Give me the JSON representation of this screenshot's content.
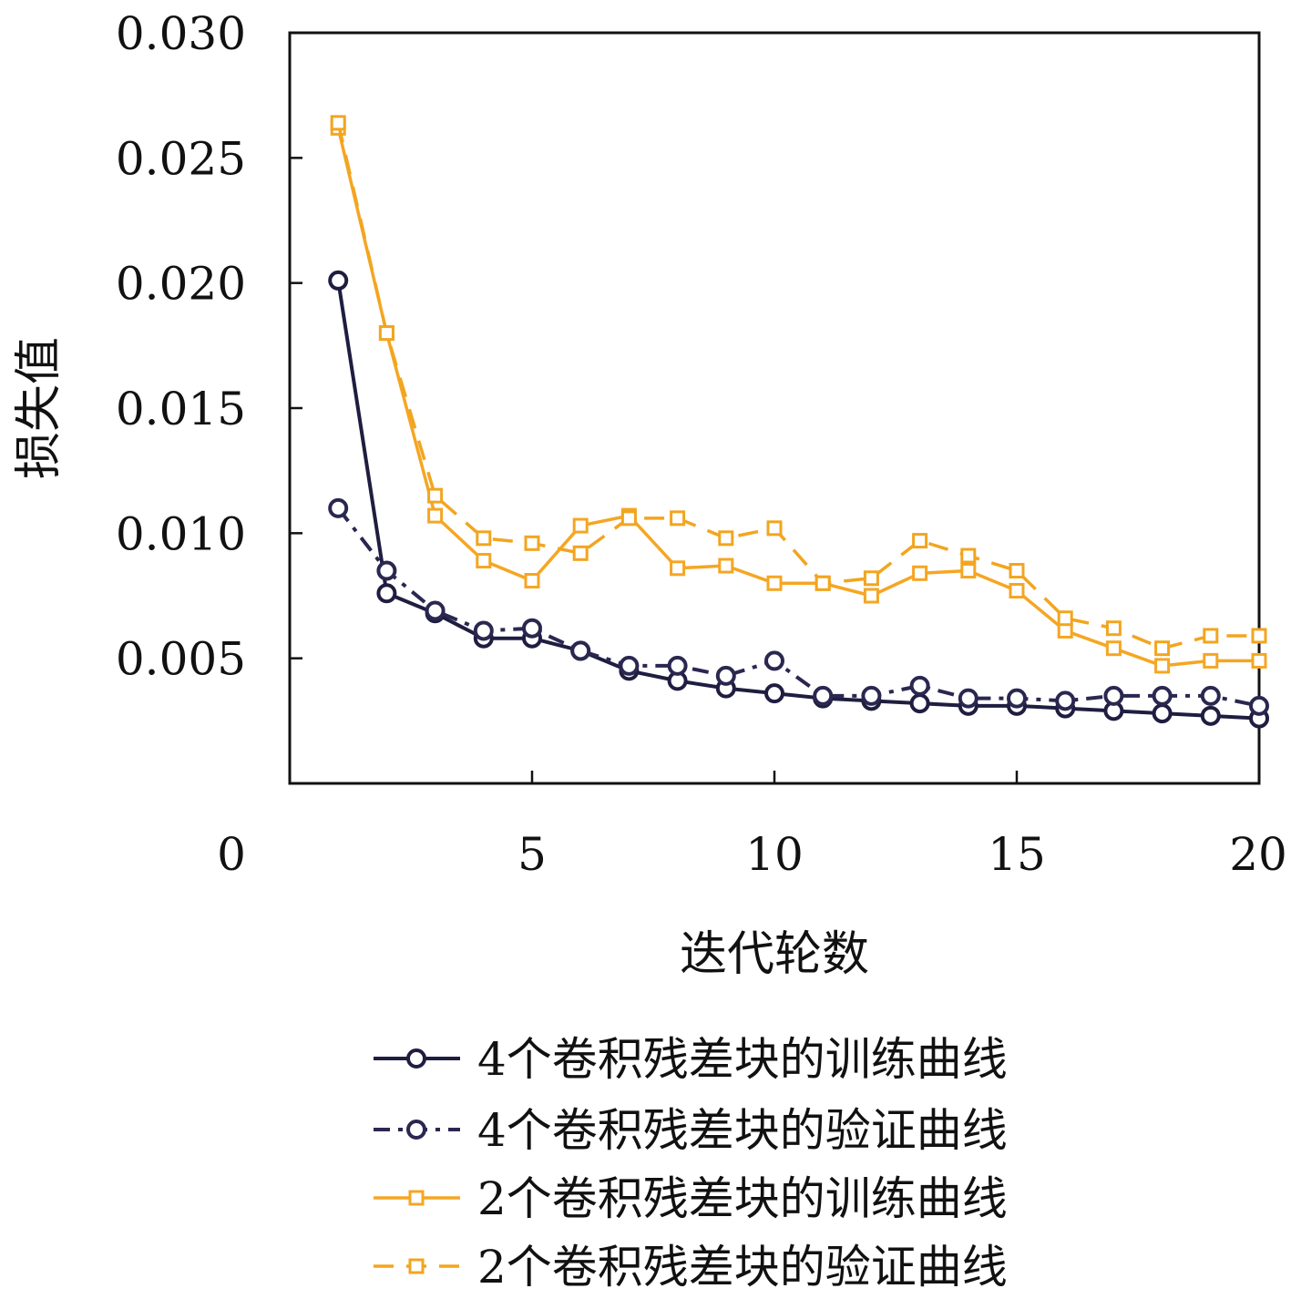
{
  "chart_data": {
    "type": "line",
    "xlabel": "迭代轮数",
    "ylabel": "损失值",
    "xlim": [
      0,
      20
    ],
    "ylim": [
      0,
      0.03
    ],
    "x_ticks": [
      "0",
      "5",
      "10",
      "15",
      "20"
    ],
    "y_ticks": [
      "0.005",
      "0.010",
      "0.015",
      "0.020",
      "0.025",
      "0.030"
    ],
    "grid": false,
    "legend_position": "bottom",
    "x": [
      1,
      2,
      3,
      4,
      5,
      6,
      7,
      8,
      9,
      10,
      11,
      12,
      13,
      14,
      15,
      16,
      17,
      18,
      19,
      20
    ],
    "series": [
      {
        "name": "4个卷积残差块的训练曲线",
        "color": "#1f1d40",
        "dash": "solid",
        "marker": "circle",
        "values": [
          0.0201,
          0.0076,
          0.0068,
          0.0058,
          0.0058,
          0.0053,
          0.0045,
          0.0041,
          0.0038,
          0.0036,
          0.0034,
          0.0033,
          0.0032,
          0.0031,
          0.0031,
          0.003,
          0.0029,
          0.0028,
          0.0027,
          0.0026
        ]
      },
      {
        "name": "4个卷积残差块的验证曲线",
        "color": "#2a2750",
        "dash": "dashdot",
        "marker": "circle",
        "values": [
          0.011,
          0.0085,
          0.0069,
          0.0061,
          0.0062,
          0.0053,
          0.0047,
          0.0047,
          0.0043,
          0.0049,
          0.0035,
          0.0035,
          0.0039,
          0.0034,
          0.0034,
          0.0033,
          0.0035,
          0.0035,
          0.0035,
          0.0031
        ]
      },
      {
        "name": "2个卷积残差块的训练曲线",
        "color": "#f5a623",
        "dash": "solid",
        "marker": "square",
        "values": [
          0.0262,
          0.018,
          0.0107,
          0.0089,
          0.0081,
          0.0103,
          0.0107,
          0.0086,
          0.0087,
          0.008,
          0.008,
          0.0075,
          0.0084,
          0.0085,
          0.0077,
          0.0061,
          0.0054,
          0.0047,
          0.0049,
          0.0049
        ]
      },
      {
        "name": "2个卷积残差块的验证曲线",
        "color": "#f2a51f",
        "dash": "dashed",
        "marker": "square",
        "values": [
          0.0264,
          0.018,
          0.0115,
          0.0098,
          0.0096,
          0.0092,
          0.0106,
          0.0106,
          0.0098,
          0.0102,
          0.008,
          0.0082,
          0.0097,
          0.0091,
          0.0085,
          0.0066,
          0.0062,
          0.0054,
          0.0059,
          0.0059
        ]
      }
    ]
  }
}
